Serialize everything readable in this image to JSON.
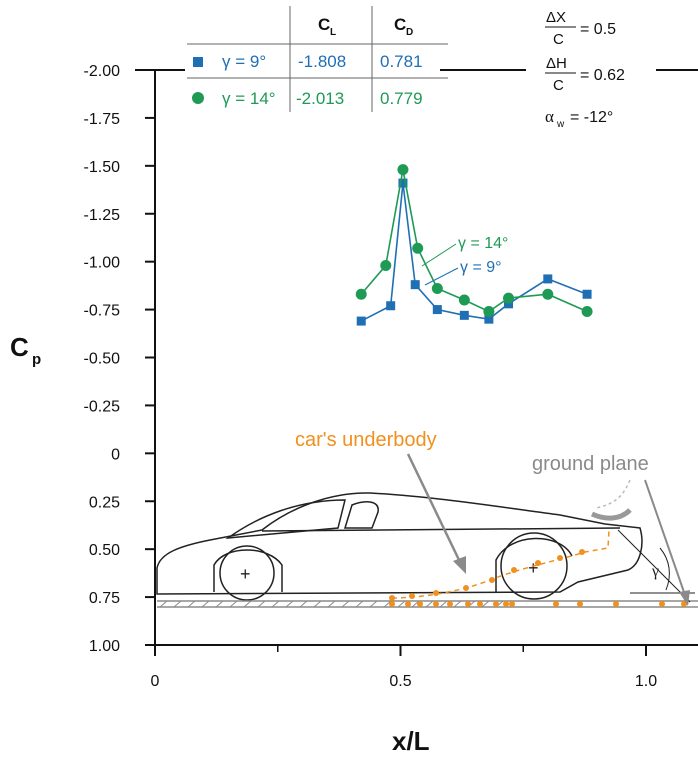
{
  "colors": {
    "blue": "#1f6fb5",
    "green": "#1e9a55",
    "orange": "#f0901e",
    "gray": "#9a9a9a"
  },
  "chart_data": {
    "type": "line",
    "xlabel": "x/L",
    "ylabel": "C",
    "ylabel_sub": "p",
    "y_reversed": true,
    "ylim": [
      -2.0,
      1.0
    ],
    "xlim": [
      0,
      1.1
    ],
    "x_ticks": [
      "0",
      "0.5",
      "1.0"
    ],
    "x_tick_values": [
      0,
      0.5,
      1.0
    ],
    "y_ticks": [
      "-2.00",
      "-1.75",
      "-1.50",
      "-1.25",
      "-1.00",
      "-0.75",
      "-0.50",
      "-0.25",
      "0",
      "0.25",
      "0.50",
      "0.75",
      "1.00"
    ],
    "y_tick_values": [
      -2.0,
      -1.75,
      -1.5,
      -1.25,
      -1.0,
      -0.75,
      -0.5,
      -0.25,
      0,
      0.25,
      0.5,
      0.75,
      1.0
    ],
    "series": [
      {
        "name": "γ = 9°",
        "label": "γ = 9°",
        "marker": "square",
        "color": "#1f6fb5",
        "x": [
          0.42,
          0.48,
          0.505,
          0.53,
          0.575,
          0.63,
          0.68,
          0.72,
          0.8,
          0.88
        ],
        "y": [
          -0.69,
          -0.77,
          -1.41,
          -0.88,
          -0.75,
          -0.72,
          -0.7,
          -0.78,
          -0.91,
          -0.83
        ]
      },
      {
        "name": "γ = 14°",
        "label": "γ = 14°",
        "marker": "circle",
        "color": "#1e9a55",
        "x": [
          0.42,
          0.47,
          0.505,
          0.535,
          0.575,
          0.63,
          0.68,
          0.72,
          0.8,
          0.88
        ],
        "y": [
          -0.83,
          -0.98,
          -1.48,
          -1.07,
          -0.86,
          -0.8,
          -0.74,
          -0.81,
          -0.83,
          -0.74
        ]
      }
    ],
    "table": {
      "headers": [
        "C",
        "C"
      ],
      "header_subs": [
        "L",
        "D"
      ],
      "rows": [
        {
          "label": "γ = 9°",
          "cl": "-1.808",
          "cd": "0.781"
        },
        {
          "label": "γ = 14°",
          "cl": "-2.013",
          "cd": "0.779"
        }
      ]
    },
    "params": {
      "dx_num": "ΔX",
      "dx_den": "C",
      "dx_val": "= 0.5",
      "dh_num": "ΔH",
      "dh_den": "C",
      "dh_val": "= 0.62",
      "alpha_sym": "α",
      "alpha_sub": "w",
      "alpha_val": "= -12°"
    },
    "annotations": {
      "underbody": "car's underbody",
      "ground": "ground plane",
      "gamma": "γ",
      "plus": "+"
    },
    "grid": false
  }
}
